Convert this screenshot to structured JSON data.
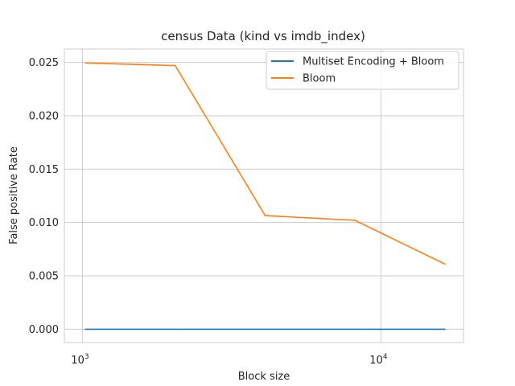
{
  "chart_data": {
    "type": "line",
    "title": "census Data (kind vs imdb_index)",
    "xlabel": "Block size",
    "ylabel": "False positive Rate",
    "xscale": "log",
    "xlim": [
      870,
      18900
    ],
    "ylim": [
      -0.00125,
      0.02625
    ],
    "x": [
      1024,
      2048,
      4096,
      8192,
      16384
    ],
    "series": [
      {
        "name": "Multiset Encoding + Bloom",
        "color": "#1f77b4",
        "values": [
          0.0,
          0.0,
          0.0,
          0.0,
          0.0
        ]
      },
      {
        "name": "Bloom",
        "color": "#ff7f0e",
        "values": [
          0.02495,
          0.0247,
          0.01065,
          0.0102,
          0.0061
        ]
      }
    ],
    "yticks": [
      {
        "value": 0.0,
        "label": "0.000"
      },
      {
        "value": 0.005,
        "label": "0.005"
      },
      {
        "value": 0.01,
        "label": "0.010"
      },
      {
        "value": 0.015,
        "label": "0.015"
      },
      {
        "value": 0.02,
        "label": "0.020"
      },
      {
        "value": 0.025,
        "label": "0.025"
      }
    ],
    "xticks": [
      {
        "value": 1000,
        "base": "10",
        "exp": "3"
      },
      {
        "value": 10000,
        "base": "10",
        "exp": "4"
      }
    ],
    "grid": true,
    "legend_position": "top-right"
  }
}
